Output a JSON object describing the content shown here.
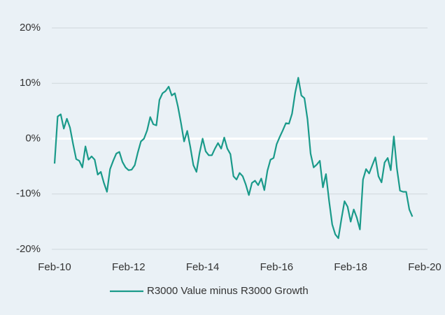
{
  "chart_data": {
    "type": "line",
    "x": [
      "2010-02",
      "2010-03",
      "2010-04",
      "2010-05",
      "2010-06",
      "2010-07",
      "2010-08",
      "2010-09",
      "2010-10",
      "2010-11",
      "2010-12",
      "2011-01",
      "2011-02",
      "2011-03",
      "2011-04",
      "2011-05",
      "2011-06",
      "2011-07",
      "2011-08",
      "2011-09",
      "2011-10",
      "2011-11",
      "2011-12",
      "2012-01",
      "2012-02",
      "2012-03",
      "2012-04",
      "2012-05",
      "2012-06",
      "2012-07",
      "2012-08",
      "2012-09",
      "2012-10",
      "2012-11",
      "2012-12",
      "2013-01",
      "2013-02",
      "2013-03",
      "2013-04",
      "2013-05",
      "2013-06",
      "2013-07",
      "2013-08",
      "2013-09",
      "2013-10",
      "2013-11",
      "2013-12",
      "2014-01",
      "2014-02",
      "2014-03",
      "2014-04",
      "2014-05",
      "2014-06",
      "2014-07",
      "2014-08",
      "2014-09",
      "2014-10",
      "2014-11",
      "2014-12",
      "2015-01",
      "2015-02",
      "2015-03",
      "2015-04",
      "2015-05",
      "2015-06",
      "2015-07",
      "2015-08",
      "2015-09",
      "2015-10",
      "2015-11",
      "2015-12",
      "2016-01",
      "2016-02",
      "2016-03",
      "2016-04",
      "2016-05",
      "2016-06",
      "2016-07",
      "2016-08",
      "2016-09",
      "2016-10",
      "2016-11",
      "2016-12",
      "2017-01",
      "2017-02",
      "2017-03",
      "2017-04",
      "2017-05",
      "2017-06",
      "2017-07",
      "2017-08",
      "2017-09",
      "2017-10",
      "2017-11",
      "2017-12",
      "2018-01",
      "2018-02",
      "2018-03",
      "2018-04",
      "2018-05",
      "2018-06",
      "2018-07",
      "2018-08",
      "2018-09",
      "2018-10",
      "2018-11",
      "2018-12",
      "2019-01",
      "2019-02",
      "2019-03",
      "2019-04",
      "2019-05",
      "2019-06",
      "2019-07",
      "2019-08",
      "2019-09",
      "2019-10"
    ],
    "series": [
      {
        "name": "R3000 Value minus R3000 Growth",
        "color": "#1a9a8a",
        "values": [
          -4.5,
          4,
          4.4,
          1.8,
          3.6,
          2,
          -1,
          -3.7,
          -4,
          -5.2,
          -1.4,
          -3.8,
          -3.2,
          -3.8,
          -6.5,
          -6,
          -8,
          -9.6,
          -5.5,
          -4,
          -2.7,
          -2.4,
          -4.2,
          -5.2,
          -5.7,
          -5.6,
          -4.8,
          -2.5,
          -0.5,
          0,
          1.5,
          3.9,
          2.6,
          2.4,
          7,
          8.2,
          8.6,
          9.4,
          7.8,
          8.2,
          5.8,
          2.8,
          -0.5,
          1.4,
          -1.5,
          -4.8,
          -6,
          -2.6,
          0,
          -2.3,
          -3,
          -3,
          -1.8,
          -0.8,
          -1.8,
          0.2,
          -1.8,
          -2.8,
          -6.8,
          -7.4,
          -6.2,
          -6.8,
          -8.3,
          -10.2,
          -8,
          -7.6,
          -8.4,
          -7.2,
          -9.3,
          -5.8,
          -3.8,
          -3.5,
          -1,
          0.3,
          1.5,
          2.8,
          2.7,
          4.5,
          8.3,
          11,
          7.8,
          7.3,
          3.5,
          -2.7,
          -5.2,
          -4.7,
          -4,
          -8.8,
          -6.4,
          -11.2,
          -15.5,
          -17.3,
          -18,
          -14.5,
          -11.3,
          -12.3,
          -15,
          -12.8,
          -14.3,
          -16.4,
          -7.4,
          -5.5,
          -6.3,
          -4.8,
          -3.4,
          -6.8,
          -7.9,
          -4.3,
          -3.5,
          -5.7,
          0.4,
          -5.4,
          -9.4,
          -9.6,
          -9.6,
          -12.8,
          -14.1
        ]
      }
    ],
    "xlim": [
      "2010-02",
      "2020-02"
    ],
    "xticks": [
      {
        "value": "2010-02",
        "label": "Feb-10"
      },
      {
        "value": "2012-02",
        "label": "Feb-12"
      },
      {
        "value": "2014-02",
        "label": "Feb-14"
      },
      {
        "value": "2016-02",
        "label": "Feb-16"
      },
      {
        "value": "2018-02",
        "label": "Feb-18"
      },
      {
        "value": "2020-02",
        "label": "Feb-20"
      }
    ],
    "ylim": [
      -20,
      20
    ],
    "yticks": [
      {
        "value": -20,
        "label": "-20%"
      },
      {
        "value": -10,
        "label": "-10%"
      },
      {
        "value": 0,
        "label": "0%"
      },
      {
        "value": 10,
        "label": "10%"
      },
      {
        "value": 20,
        "label": "20%"
      }
    ],
    "grid": true,
    "grid_color": "#cfd8dc",
    "zero_line_color": "#ffffff",
    "background": "#eaf1f6",
    "legend": "bottom"
  }
}
